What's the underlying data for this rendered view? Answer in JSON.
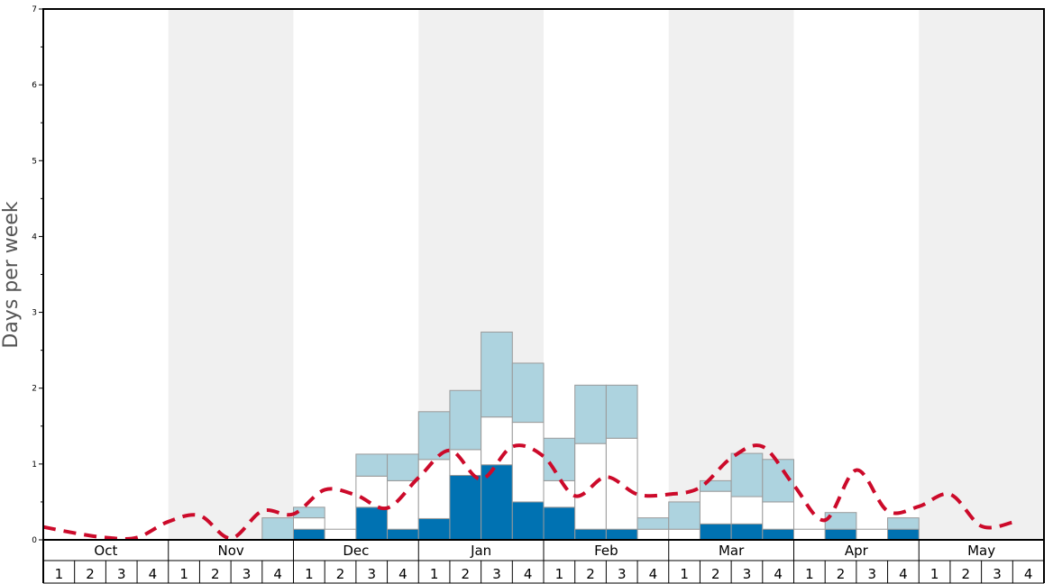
{
  "chart_data": {
    "type": "bar",
    "ylabel": "Days per week",
    "ylim": [
      0,
      7
    ],
    "yticks": [
      "0",
      "1",
      "2",
      "3",
      "4",
      "5",
      "6",
      "7"
    ],
    "months": [
      "Oct",
      "Nov",
      "Dec",
      "Jan",
      "Feb",
      "Mar",
      "Apr",
      "May"
    ],
    "week_labels": [
      "1",
      "2",
      "3",
      "4"
    ],
    "shaded_months": [
      "Nov",
      "Jan",
      "Mar",
      "May"
    ],
    "colors": {
      "deep": "#0072b2",
      "medium": "#ffffff",
      "light": "#add3df",
      "line": "#cc0a2a",
      "shade": "#f0f0f0",
      "bar_border": "#9a9a9a"
    },
    "stack_order": [
      "deep",
      "medium",
      "light"
    ],
    "series": [
      {
        "key": "deep",
        "values": [
          0,
          0,
          0,
          0,
          0,
          0,
          0,
          0,
          0.14,
          0,
          0.43,
          0.14,
          0.28,
          0.85,
          0.99,
          0.5,
          0.43,
          0.14,
          0.14,
          0,
          0,
          0.21,
          0.21,
          0.14,
          0,
          0.14,
          0,
          0.14,
          0,
          0,
          0,
          0
        ]
      },
      {
        "key": "medium",
        "values": [
          0,
          0,
          0,
          0,
          0,
          0,
          0,
          0,
          0.15,
          0.14,
          0.41,
          0.64,
          0.78,
          0.34,
          0.63,
          1.05,
          0.35,
          1.13,
          1.2,
          0.14,
          0.14,
          0.43,
          0.36,
          0.36,
          0.14,
          0,
          0.14,
          0,
          0,
          0,
          0,
          0
        ]
      },
      {
        "key": "light",
        "values": [
          0,
          0,
          0,
          0,
          0,
          0,
          0,
          0.29,
          0.14,
          0,
          0.29,
          0.35,
          0.63,
          0.78,
          1.12,
          0.78,
          0.56,
          0.77,
          0.7,
          0.15,
          0.36,
          0.14,
          0.57,
          0.56,
          0,
          0.22,
          0,
          0.15,
          0,
          0,
          0,
          0
        ]
      },
      {
        "key": "line",
        "values": [
          0.17,
          0.09,
          0.03,
          0.03,
          0.24,
          0.32,
          0.02,
          0.38,
          0.34,
          0.66,
          0.59,
          0.42,
          0.82,
          1.18,
          0.8,
          1.23,
          1.1,
          0.58,
          0.83,
          0.6,
          0.6,
          0.69,
          1.08,
          1.23,
          0.72,
          0.26,
          0.92,
          0.38,
          0.44,
          0.6,
          0.18,
          0.23
        ]
      }
    ]
  }
}
